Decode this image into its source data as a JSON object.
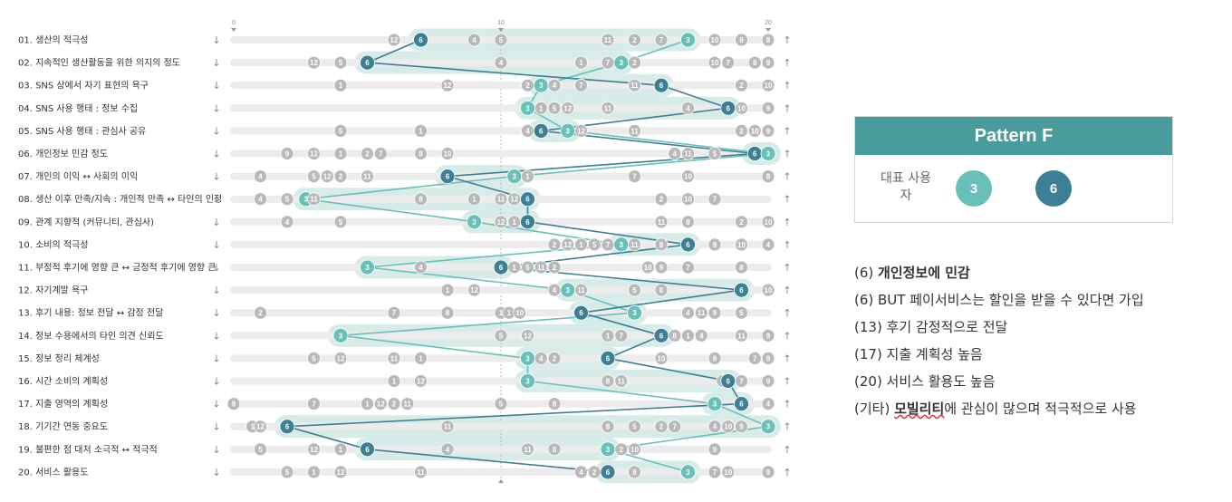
{
  "chart_data": {
    "type": "scatter",
    "axis": {
      "min": 0,
      "max": 20,
      "ticks": [
        0,
        10,
        20
      ]
    },
    "colors": {
      "user3": "#68c0b9",
      "user6": "#3d7f95",
      "other": "#b9b9b9",
      "track": "#ececec",
      "band": "#4aa59b"
    },
    "rows": [
      {
        "label": "01. 생산의 적극성",
        "markers": [
          {
            "n": "12",
            "x": 6
          },
          {
            "n": "6",
            "x": 7
          },
          {
            "n": "4",
            "x": 9
          },
          {
            "n": "5",
            "x": 10
          },
          {
            "n": "11",
            "x": 14
          },
          {
            "n": "2",
            "x": 15
          },
          {
            "n": "7",
            "x": 16
          },
          {
            "n": "3",
            "x": 17
          },
          {
            "n": "10",
            "x": 18
          },
          {
            "n": "9",
            "x": 19
          },
          {
            "n": "8",
            "x": 20
          }
        ]
      },
      {
        "label": "02. 지속적인 생산활동을 위한 의지의 정도",
        "markers": [
          {
            "n": "12",
            "x": 3
          },
          {
            "n": "5",
            "x": 4
          },
          {
            "n": "6",
            "x": 5
          },
          {
            "n": "4",
            "x": 10
          },
          {
            "n": "1",
            "x": 13
          },
          {
            "n": "7",
            "x": 14
          },
          {
            "n": "3",
            "x": 14.5
          },
          {
            "n": "2",
            "x": 15
          },
          {
            "n": "10",
            "x": 18
          },
          {
            "n": "7",
            "x": 18.5
          },
          {
            "n": "8",
            "x": 19.5
          },
          {
            "n": "9",
            "x": 20
          }
        ]
      },
      {
        "label": "03. SNS 상에서 자기 표현의 욕구",
        "markers": [
          {
            "n": "1",
            "x": 4
          },
          {
            "n": "12",
            "x": 8
          },
          {
            "n": "2",
            "x": 11
          },
          {
            "n": "3",
            "x": 11.5
          },
          {
            "n": "4",
            "x": 12
          },
          {
            "n": "7",
            "x": 13
          },
          {
            "n": "11",
            "x": 15
          },
          {
            "n": "6",
            "x": 16
          },
          {
            "n": "2",
            "x": 19
          },
          {
            "n": "10",
            "x": 20
          }
        ]
      },
      {
        "label": "04. SNS 사용 행태 : 정보 수집",
        "markers": [
          {
            "n": "3",
            "x": 11
          },
          {
            "n": "1",
            "x": 11.5
          },
          {
            "n": "5",
            "x": 12
          },
          {
            "n": "12",
            "x": 12.5
          },
          {
            "n": "11",
            "x": 14
          },
          {
            "n": "4",
            "x": 17
          },
          {
            "n": "6",
            "x": 18.5
          },
          {
            "n": "10",
            "x": 19
          },
          {
            "n": "9",
            "x": 20
          }
        ]
      },
      {
        "label": "05. SNS 사용 행태 : 관심사 공유",
        "markers": [
          {
            "n": "5",
            "x": 4
          },
          {
            "n": "1",
            "x": 7
          },
          {
            "n": "4",
            "x": 11
          },
          {
            "n": "6",
            "x": 11.5
          },
          {
            "n": "3",
            "x": 12.5
          },
          {
            "n": "12",
            "x": 13
          },
          {
            "n": "11",
            "x": 15
          },
          {
            "n": "2",
            "x": 19
          },
          {
            "n": "10",
            "x": 19.5
          },
          {
            "n": "9",
            "x": 20
          }
        ]
      },
      {
        "label": "06. 개인정보 민감 정도",
        "markers": [
          {
            "n": "9",
            "x": 2
          },
          {
            "n": "12",
            "x": 3
          },
          {
            "n": "1",
            "x": 4
          },
          {
            "n": "2",
            "x": 5
          },
          {
            "n": "7",
            "x": 5.5
          },
          {
            "n": "8",
            "x": 7
          },
          {
            "n": "10",
            "x": 8
          },
          {
            "n": "4",
            "x": 16.5
          },
          {
            "n": "11",
            "x": 17
          },
          {
            "n": "5",
            "x": 18
          },
          {
            "n": "6",
            "x": 19.5
          },
          {
            "n": "3",
            "x": 20
          }
        ]
      },
      {
        "label": "07. 개인의 이익 ↔ 사회의 이익",
        "markers": [
          {
            "n": "4",
            "x": 1
          },
          {
            "n": "5",
            "x": 3
          },
          {
            "n": "12",
            "x": 3.5
          },
          {
            "n": "2",
            "x": 4
          },
          {
            "n": "11",
            "x": 5
          },
          {
            "n": "6",
            "x": 8
          },
          {
            "n": "3",
            "x": 10.5
          },
          {
            "n": "1",
            "x": 11
          },
          {
            "n": "7",
            "x": 15
          },
          {
            "n": "10",
            "x": 17
          },
          {
            "n": "8",
            "x": 20
          }
        ]
      },
      {
        "label": "08. 생산 이후 만족/지속 : 개인적 만족 ↔ 타인의 인정",
        "markers": [
          {
            "n": "4",
            "x": 1
          },
          {
            "n": "5",
            "x": 2
          },
          {
            "n": "3",
            "x": 2.7
          },
          {
            "n": "11",
            "x": 3
          },
          {
            "n": "8",
            "x": 7
          },
          {
            "n": "1",
            "x": 9
          },
          {
            "n": "11",
            "x": 10
          },
          {
            "n": "12",
            "x": 10.5
          },
          {
            "n": "6",
            "x": 11
          },
          {
            "n": "2",
            "x": 16
          },
          {
            "n": "10",
            "x": 17
          },
          {
            "n": "7",
            "x": 18
          }
        ]
      },
      {
        "label": "09. 관계 지향적 (커뮤니티, 관심사)",
        "markers": [
          {
            "n": "4",
            "x": 2
          },
          {
            "n": "5",
            "x": 4
          },
          {
            "n": "3",
            "x": 9
          },
          {
            "n": "12",
            "x": 10
          },
          {
            "n": "1",
            "x": 10.5
          },
          {
            "n": "6",
            "x": 11
          },
          {
            "n": "11",
            "x": 16
          },
          {
            "n": "8",
            "x": 17
          },
          {
            "n": "2",
            "x": 19
          },
          {
            "n": "10",
            "x": 20
          }
        ]
      },
      {
        "label": "10. 소비의 적극성",
        "markers": [
          {
            "n": "2",
            "x": 12
          },
          {
            "n": "12",
            "x": 12.5
          },
          {
            "n": "1",
            "x": 13
          },
          {
            "n": "5",
            "x": 13.5
          },
          {
            "n": "7",
            "x": 14
          },
          {
            "n": "3",
            "x": 14.5
          },
          {
            "n": "11",
            "x": 15
          },
          {
            "n": "8",
            "x": 16
          },
          {
            "n": "6",
            "x": 17
          },
          {
            "n": "9",
            "x": 18
          },
          {
            "n": "10",
            "x": 19
          },
          {
            "n": "4",
            "x": 20
          }
        ]
      },
      {
        "label": "11. 부정적 후기에 영향 큰 ↔ 긍정적 후기에 영향 큰",
        "markers": [
          {
            "n": "3",
            "x": 5
          },
          {
            "n": "4",
            "x": 7
          },
          {
            "n": "6",
            "x": 10
          },
          {
            "n": "1",
            "x": 10.5
          },
          {
            "n": "5",
            "x": 11
          },
          {
            "n": "11",
            "x": 11.5
          },
          {
            "n": "2",
            "x": 12
          },
          {
            "n": "10",
            "x": 15.5
          },
          {
            "n": "9",
            "x": 16
          },
          {
            "n": "7",
            "x": 17
          },
          {
            "n": "8",
            "x": 19
          }
        ]
      },
      {
        "label": "12. 자기계발 욕구",
        "markers": [
          {
            "n": "1",
            "x": 8
          },
          {
            "n": "12",
            "x": 9
          },
          {
            "n": "4",
            "x": 12
          },
          {
            "n": "3",
            "x": 12.5
          },
          {
            "n": "11",
            "x": 13
          },
          {
            "n": "5",
            "x": 15
          },
          {
            "n": "8",
            "x": 16
          },
          {
            "n": "6",
            "x": 19
          },
          {
            "n": "10",
            "x": 20
          }
        ]
      },
      {
        "label": "13. 후기 내용: 정보 전달 ↔ 감정 전달",
        "markers": [
          {
            "n": "2",
            "x": 1
          },
          {
            "n": "7",
            "x": 6
          },
          {
            "n": "8",
            "x": 8
          },
          {
            "n": "1",
            "x": 10
          },
          {
            "n": "1",
            "x": 10.3
          },
          {
            "n": "10",
            "x": 10.7
          },
          {
            "n": "6",
            "x": 13
          },
          {
            "n": "3",
            "x": 15
          },
          {
            "n": "4",
            "x": 17
          },
          {
            "n": "11",
            "x": 17.5
          },
          {
            "n": "9",
            "x": 18
          },
          {
            "n": "5",
            "x": 19
          }
        ]
      },
      {
        "label": "14. 정보 수용에서의 타인 의견 신뢰도",
        "markers": [
          {
            "n": "3",
            "x": 4
          },
          {
            "n": "5",
            "x": 10
          },
          {
            "n": "12",
            "x": 11
          },
          {
            "n": "1",
            "x": 14
          },
          {
            "n": "7",
            "x": 14.5
          },
          {
            "n": "6",
            "x": 16
          },
          {
            "n": "8",
            "x": 16.5
          },
          {
            "n": "1",
            "x": 17
          },
          {
            "n": "4",
            "x": 17.5
          },
          {
            "n": "11",
            "x": 19
          },
          {
            "n": "9",
            "x": 20
          }
        ]
      },
      {
        "label": "15. 정보 정리 체계성",
        "markers": [
          {
            "n": "5",
            "x": 3
          },
          {
            "n": "12",
            "x": 4
          },
          {
            "n": "11",
            "x": 6
          },
          {
            "n": "1",
            "x": 7
          },
          {
            "n": "3",
            "x": 11
          },
          {
            "n": "4",
            "x": 11.5
          },
          {
            "n": "2",
            "x": 12
          },
          {
            "n": "6",
            "x": 14
          },
          {
            "n": "10",
            "x": 16
          },
          {
            "n": "8",
            "x": 18
          },
          {
            "n": "7",
            "x": 19.5
          },
          {
            "n": "9",
            "x": 20
          }
        ]
      },
      {
        "label": "16. 시간 소비의 계획성",
        "markers": [
          {
            "n": "1",
            "x": 6
          },
          {
            "n": "12",
            "x": 7
          },
          {
            "n": "3",
            "x": 11
          },
          {
            "n": "8",
            "x": 14
          },
          {
            "n": "11",
            "x": 14.5
          },
          {
            "n": "2",
            "x": 18.3
          },
          {
            "n": "6",
            "x": 18.5
          },
          {
            "n": "7",
            "x": 19
          },
          {
            "n": "9",
            "x": 20
          }
        ]
      },
      {
        "label": "17. 지출 영역의 계획성",
        "markers": [
          {
            "n": "9",
            "x": 0
          },
          {
            "n": "7",
            "x": 3
          },
          {
            "n": "1",
            "x": 5
          },
          {
            "n": "12",
            "x": 5.5
          },
          {
            "n": "2",
            "x": 6
          },
          {
            "n": "11",
            "x": 6.5
          },
          {
            "n": "5",
            "x": 10
          },
          {
            "n": "8",
            "x": 12
          },
          {
            "n": "3",
            "x": 18
          },
          {
            "n": "6",
            "x": 19
          },
          {
            "n": "4",
            "x": 20
          }
        ]
      },
      {
        "label": "18. 기기간 연동 중요도",
        "markers": [
          {
            "n": "1",
            "x": 0.7
          },
          {
            "n": "12",
            "x": 1
          },
          {
            "n": "6",
            "x": 2
          },
          {
            "n": "11",
            "x": 8
          },
          {
            "n": "8",
            "x": 14
          },
          {
            "n": "5",
            "x": 15
          },
          {
            "n": "2",
            "x": 16
          },
          {
            "n": "7",
            "x": 16.5
          },
          {
            "n": "4",
            "x": 18
          },
          {
            "n": "10",
            "x": 18.5
          },
          {
            "n": "9",
            "x": 19
          },
          {
            "n": "3",
            "x": 20
          }
        ]
      },
      {
        "label": "19. 불편한 점 대처 소극적 ↔ 적극적",
        "markers": [
          {
            "n": "5",
            "x": 1
          },
          {
            "n": "12",
            "x": 3
          },
          {
            "n": "1",
            "x": 4
          },
          {
            "n": "6",
            "x": 5
          },
          {
            "n": "4",
            "x": 8
          },
          {
            "n": "11",
            "x": 11
          },
          {
            "n": "8",
            "x": 12
          },
          {
            "n": "3",
            "x": 14
          },
          {
            "n": "2",
            "x": 14.5
          },
          {
            "n": "10",
            "x": 15
          },
          {
            "n": "9",
            "x": 18
          }
        ]
      },
      {
        "label": "20. 서비스 활용도",
        "markers": [
          {
            "n": "5",
            "x": 2
          },
          {
            "n": "1",
            "x": 3
          },
          {
            "n": "12",
            "x": 4
          },
          {
            "n": "11",
            "x": 7
          },
          {
            "n": "4",
            "x": 13
          },
          {
            "n": "2",
            "x": 13.5
          },
          {
            "n": "6",
            "x": 14
          },
          {
            "n": "8",
            "x": 15
          },
          {
            "n": "3",
            "x": 17
          },
          {
            "n": "7",
            "x": 18
          },
          {
            "n": "10",
            "x": 18.5
          },
          {
            "n": "9",
            "x": 20
          }
        ]
      }
    ]
  },
  "panel": {
    "title": "Pattern F",
    "rep_label": "대표 사용자",
    "users": [
      {
        "label": "3",
        "color": "#68c0b9"
      },
      {
        "label": "6",
        "color": "#3d7f95"
      }
    ]
  },
  "notes": [
    {
      "prefix": "(6) ",
      "bold": "개인정보에 민감",
      "rest": ""
    },
    {
      "prefix": "(6) BUT 페이서비스는 할인을 받을 수 있다면 가입",
      "bold": "",
      "rest": ""
    },
    {
      "prefix": "(13) 후기 감정적으로 전달",
      "bold": "",
      "rest": ""
    },
    {
      "prefix": "(17) 지출 계획성 높음",
      "bold": "",
      "rest": ""
    },
    {
      "prefix": "(20) 서비스 활용도 높음",
      "bold": "",
      "rest": ""
    },
    {
      "prefix": "(기타) ",
      "bold": "모빌리티",
      "rest": "에 관심이 많으며 적극적으로 사용"
    }
  ]
}
